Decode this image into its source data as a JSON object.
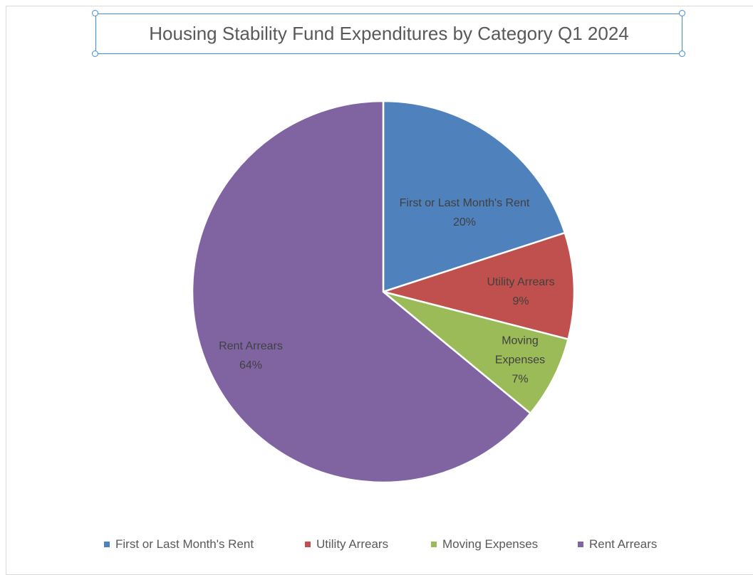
{
  "chart_data": {
    "type": "pie",
    "title": "Housing Stability Fund Expenditures by Category Q1 2024",
    "categories": [
      "First or Last Month's Rent",
      "Utility Arrears",
      "Moving Expenses",
      "Rent Arrears"
    ],
    "values": [
      20,
      9,
      7,
      64
    ],
    "value_labels": [
      "20%",
      "9%",
      "7%",
      "64%"
    ],
    "colors": [
      "#4f81bd",
      "#c0504d",
      "#9bbb59",
      "#8064a2"
    ],
    "legend": "bottom"
  }
}
